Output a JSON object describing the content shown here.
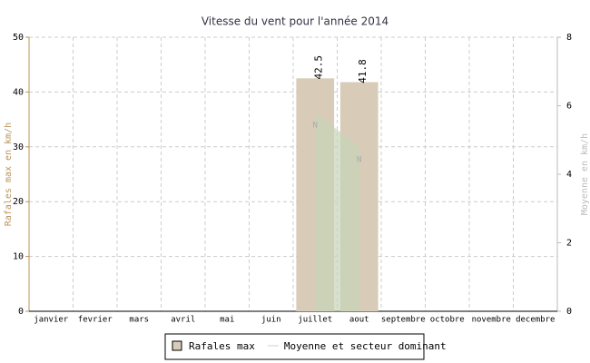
{
  "chart_data": {
    "type": "bar",
    "title": "Vitesse du vent pour l'année 2014",
    "categories": [
      "janvier",
      "fevrier",
      "mars",
      "avril",
      "mai",
      "juin",
      "juillet",
      "aout",
      "septembre",
      "octobre",
      "novembre",
      "decembre"
    ],
    "y_label": "Rafales max en km/h",
    "y2_label": "Moyenne en km/h",
    "ylim": [
      0,
      50
    ],
    "yticks": [
      0,
      10,
      20,
      30,
      40,
      50
    ],
    "y2lim": [
      0,
      8
    ],
    "y2ticks": [
      0,
      2,
      4,
      6,
      8
    ],
    "grid": true,
    "series": [
      {
        "name": "Rafales max",
        "type": "bar",
        "color": "#d8ccb8",
        "values": [
          null,
          null,
          null,
          null,
          null,
          null,
          42.5,
          41.8,
          null,
          null,
          null,
          null
        ]
      },
      {
        "name": "Moyenne et secteur dominant",
        "type": "area",
        "axis": "y2",
        "color": "#c8d4b8",
        "values": [
          null,
          null,
          null,
          null,
          null,
          null,
          5.8,
          4.8,
          null,
          null,
          null,
          null
        ],
        "sectors": [
          null,
          null,
          null,
          null,
          null,
          null,
          "N",
          "N",
          null,
          null,
          null,
          null
        ]
      }
    ]
  }
}
